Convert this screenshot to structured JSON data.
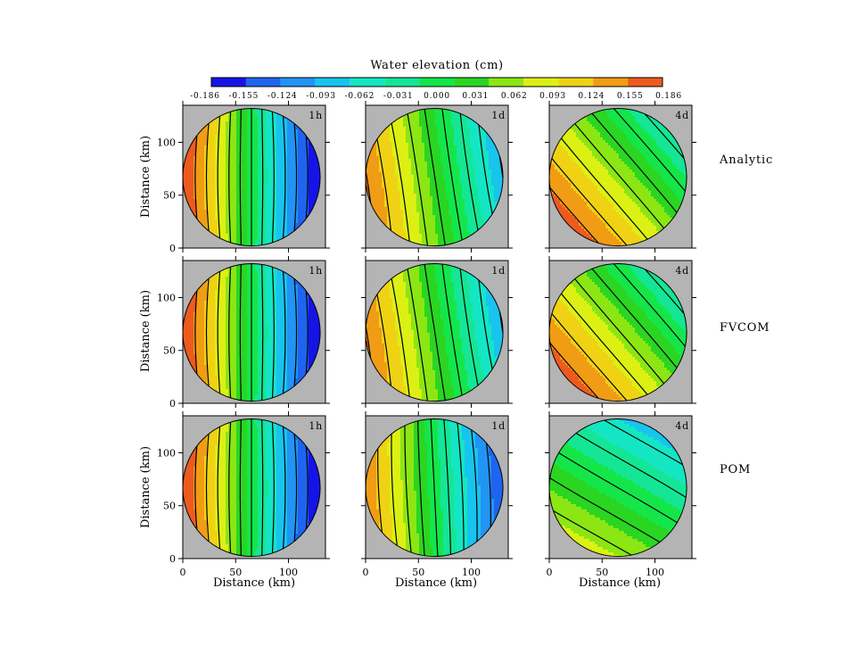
{
  "chart_data": {
    "type": "contour",
    "colorbar": {
      "title": "Water  elevation (cm)",
      "tick_labels": [
        "-0.186",
        "-0.155",
        "-0.124",
        "-0.093",
        "-0.062",
        "-0.031",
        "0.000",
        "0.031",
        "0.062",
        "0.093",
        "0.124",
        "0.155",
        "0.186"
      ],
      "levels": [
        -0.186,
        -0.155,
        -0.124,
        -0.093,
        -0.062,
        -0.031,
        0.0,
        0.031,
        0.062,
        0.093,
        0.124,
        0.155,
        0.186
      ],
      "colors": [
        "#1414e6",
        "#1e64ee",
        "#2294f4",
        "#18c4ee",
        "#14e6c4",
        "#14e696",
        "#14e64a",
        "#2ad622",
        "#8ce614",
        "#dcf014",
        "#f0d214",
        "#f09c14",
        "#ee5a1e"
      ]
    },
    "xlabel": "Distance (km)",
    "ylabel": "Distance (km)",
    "xticks": [
      "0",
      "50",
      "100"
    ],
    "yticks": [
      "0",
      "50",
      "100"
    ],
    "xlim": [
      0,
      135
    ],
    "ylim": [
      0,
      135
    ],
    "domain": "circle, diameter 130 km, centre (65, 67)",
    "rows": [
      "Analytic",
      "FVCOM",
      "POM"
    ],
    "cols": [
      "1h",
      "1d",
      "4d"
    ],
    "panels": [
      {
        "row": "Analytic",
        "time": "1h",
        "field": {
          "gx": -0.00291,
          "gy": 0,
          "c": 0,
          "rot": 0,
          "curve": 1.0
        }
      },
      {
        "row": "Analytic",
        "time": "1d",
        "field": {
          "gx": -0.00195,
          "gy": 0,
          "c": 0.032,
          "rot": 0.15,
          "curve": -0.5
        }
      },
      {
        "row": "Analytic",
        "time": "4d",
        "field": {
          "gx": -0.00155,
          "gy": -0.0005,
          "c": 0.065,
          "rot": 0.4,
          "curve": 0.3
        }
      },
      {
        "row": "FVCOM",
        "time": "1h",
        "field": {
          "gx": -0.00291,
          "gy": 0,
          "c": 0,
          "rot": 0,
          "curve": 1.0
        }
      },
      {
        "row": "FVCOM",
        "time": "1d",
        "field": {
          "gx": -0.00195,
          "gy": 0,
          "c": 0.032,
          "rot": 0.15,
          "curve": -0.5
        }
      },
      {
        "row": "FVCOM",
        "time": "4d",
        "field": {
          "gx": -0.00155,
          "gy": -0.0005,
          "c": 0.065,
          "rot": 0.4,
          "curve": 0.3
        }
      },
      {
        "row": "POM",
        "time": "1h",
        "field": {
          "gx": -0.00291,
          "gy": 0,
          "c": 0,
          "rot": 0,
          "curve": 1.0
        }
      },
      {
        "row": "POM",
        "time": "1d",
        "field": {
          "gx": -0.00235,
          "gy": 0,
          "c": 0,
          "rot": 0.05,
          "curve": 0.8
        }
      },
      {
        "row": "POM",
        "time": "4d",
        "field": {
          "gx": -0.0011,
          "gy": -0.0006,
          "c": 0.0,
          "rot": 0.55,
          "curve": 0.4
        }
      }
    ]
  }
}
